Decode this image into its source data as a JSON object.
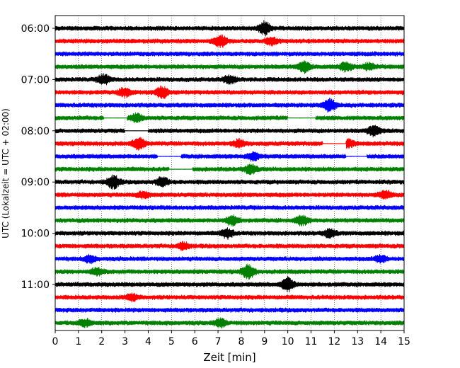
{
  "chart_data": {
    "type": "line",
    "title": "",
    "xlabel": "Zeit  [min]",
    "ylabel": "UTC (Lokalzeit = UTC + 02:00)",
    "xlim": [
      0,
      15
    ],
    "x_ticks": [
      0,
      1,
      2,
      3,
      4,
      5,
      6,
      7,
      8,
      9,
      10,
      11,
      12,
      13,
      14,
      15
    ],
    "y_tick_labels": [
      "06:00",
      "07:00",
      "08:00",
      "09:00",
      "10:00",
      "11:00"
    ],
    "row_interval_minutes": 15,
    "start_time": "06:00",
    "grid": "vertical, dotted",
    "legend": "none",
    "trace_colors": [
      "#000000",
      "#ff0000",
      "#0000ff",
      "#008000"
    ],
    "traces": [
      {
        "time": "06:00",
        "color": "#000000",
        "bursts": [
          {
            "at": 9.0,
            "amp": 2.6
          }
        ],
        "gaps": []
      },
      {
        "time": "06:15",
        "color": "#ff0000",
        "bursts": [
          {
            "at": 7.1,
            "amp": 2.4
          },
          {
            "at": 9.3,
            "amp": 1.4
          }
        ],
        "gaps": []
      },
      {
        "time": "06:30",
        "color": "#0000ff",
        "bursts": [],
        "gaps": []
      },
      {
        "time": "06:45",
        "color": "#008000",
        "bursts": [
          {
            "at": 10.7,
            "amp": 2.0
          },
          {
            "at": 12.5,
            "amp": 1.6
          },
          {
            "at": 13.5,
            "amp": 1.3
          }
        ],
        "gaps": []
      },
      {
        "time": "07:00",
        "color": "#000000",
        "bursts": [
          {
            "at": 2.1,
            "amp": 2.0
          },
          {
            "at": 7.5,
            "amp": 1.5
          }
        ],
        "gaps": []
      },
      {
        "time": "07:15",
        "color": "#ff0000",
        "bursts": [
          {
            "at": 3.0,
            "amp": 1.8
          },
          {
            "at": 4.6,
            "amp": 2.5
          }
        ],
        "gaps": []
      },
      {
        "time": "07:30",
        "color": "#0000ff",
        "bursts": [
          {
            "at": 11.8,
            "amp": 2.5
          }
        ],
        "gaps": []
      },
      {
        "time": "07:45",
        "color": "#008000",
        "bursts": [
          {
            "at": 3.5,
            "amp": 1.5
          }
        ],
        "gaps": [
          [
            2.1,
            3.1
          ],
          [
            10.0,
            11.2
          ]
        ]
      },
      {
        "time": "08:00",
        "color": "#000000",
        "bursts": [
          {
            "at": 13.7,
            "amp": 2.0
          }
        ],
        "gaps": [
          [
            3.0,
            4.0
          ]
        ]
      },
      {
        "time": "08:15",
        "color": "#ff0000",
        "bursts": [
          {
            "at": 3.6,
            "amp": 2.2
          },
          {
            "at": 7.9,
            "amp": 1.4
          },
          {
            "at": 12.6,
            "amp": 1.4
          }
        ],
        "gaps": [
          [
            11.5,
            12.5
          ]
        ]
      },
      {
        "time": "08:30",
        "color": "#0000ff",
        "bursts": [
          {
            "at": 8.5,
            "amp": 1.5
          }
        ],
        "gaps": [
          [
            4.4,
            5.4
          ],
          [
            12.5,
            13.4
          ]
        ]
      },
      {
        "time": "08:45",
        "color": "#008000",
        "bursts": [
          {
            "at": 8.4,
            "amp": 1.8
          }
        ],
        "gaps": [
          [
            4.9,
            5.9
          ]
        ]
      },
      {
        "time": "09:00",
        "color": "#000000",
        "bursts": [
          {
            "at": 2.5,
            "amp": 2.6
          },
          {
            "at": 4.6,
            "amp": 1.8
          }
        ],
        "gaps": []
      },
      {
        "time": "09:15",
        "color": "#ff0000",
        "bursts": [
          {
            "at": 3.8,
            "amp": 1.3
          },
          {
            "at": 14.2,
            "amp": 1.5
          }
        ],
        "gaps": []
      },
      {
        "time": "09:30",
        "color": "#0000ff",
        "bursts": [],
        "gaps": []
      },
      {
        "time": "09:45",
        "color": "#008000",
        "bursts": [
          {
            "at": 7.6,
            "amp": 1.8
          },
          {
            "at": 10.6,
            "amp": 1.8
          }
        ],
        "gaps": []
      },
      {
        "time": "10:00",
        "color": "#000000",
        "bursts": [
          {
            "at": 7.4,
            "amp": 1.8
          },
          {
            "at": 11.8,
            "amp": 1.6
          }
        ],
        "gaps": []
      },
      {
        "time": "10:15",
        "color": "#ff0000",
        "bursts": [
          {
            "at": 5.5,
            "amp": 1.3
          }
        ],
        "gaps": []
      },
      {
        "time": "10:30",
        "color": "#0000ff",
        "bursts": [
          {
            "at": 1.5,
            "amp": 1.3
          },
          {
            "at": 14.0,
            "amp": 1.3
          }
        ],
        "gaps": []
      },
      {
        "time": "10:45",
        "color": "#008000",
        "bursts": [
          {
            "at": 1.8,
            "amp": 1.4
          },
          {
            "at": 8.3,
            "amp": 2.8
          }
        ],
        "gaps": []
      },
      {
        "time": "11:00",
        "color": "#000000",
        "bursts": [
          {
            "at": 10.0,
            "amp": 2.8
          }
        ],
        "gaps": []
      },
      {
        "time": "11:15",
        "color": "#ff0000",
        "bursts": [
          {
            "at": 3.3,
            "amp": 1.3
          }
        ],
        "gaps": []
      },
      {
        "time": "11:30",
        "color": "#0000ff",
        "bursts": [],
        "gaps": []
      },
      {
        "time": "11:45",
        "color": "#008000",
        "bursts": [
          {
            "at": 1.3,
            "amp": 1.3
          },
          {
            "at": 7.1,
            "amp": 1.5
          }
        ],
        "gaps": []
      }
    ]
  }
}
